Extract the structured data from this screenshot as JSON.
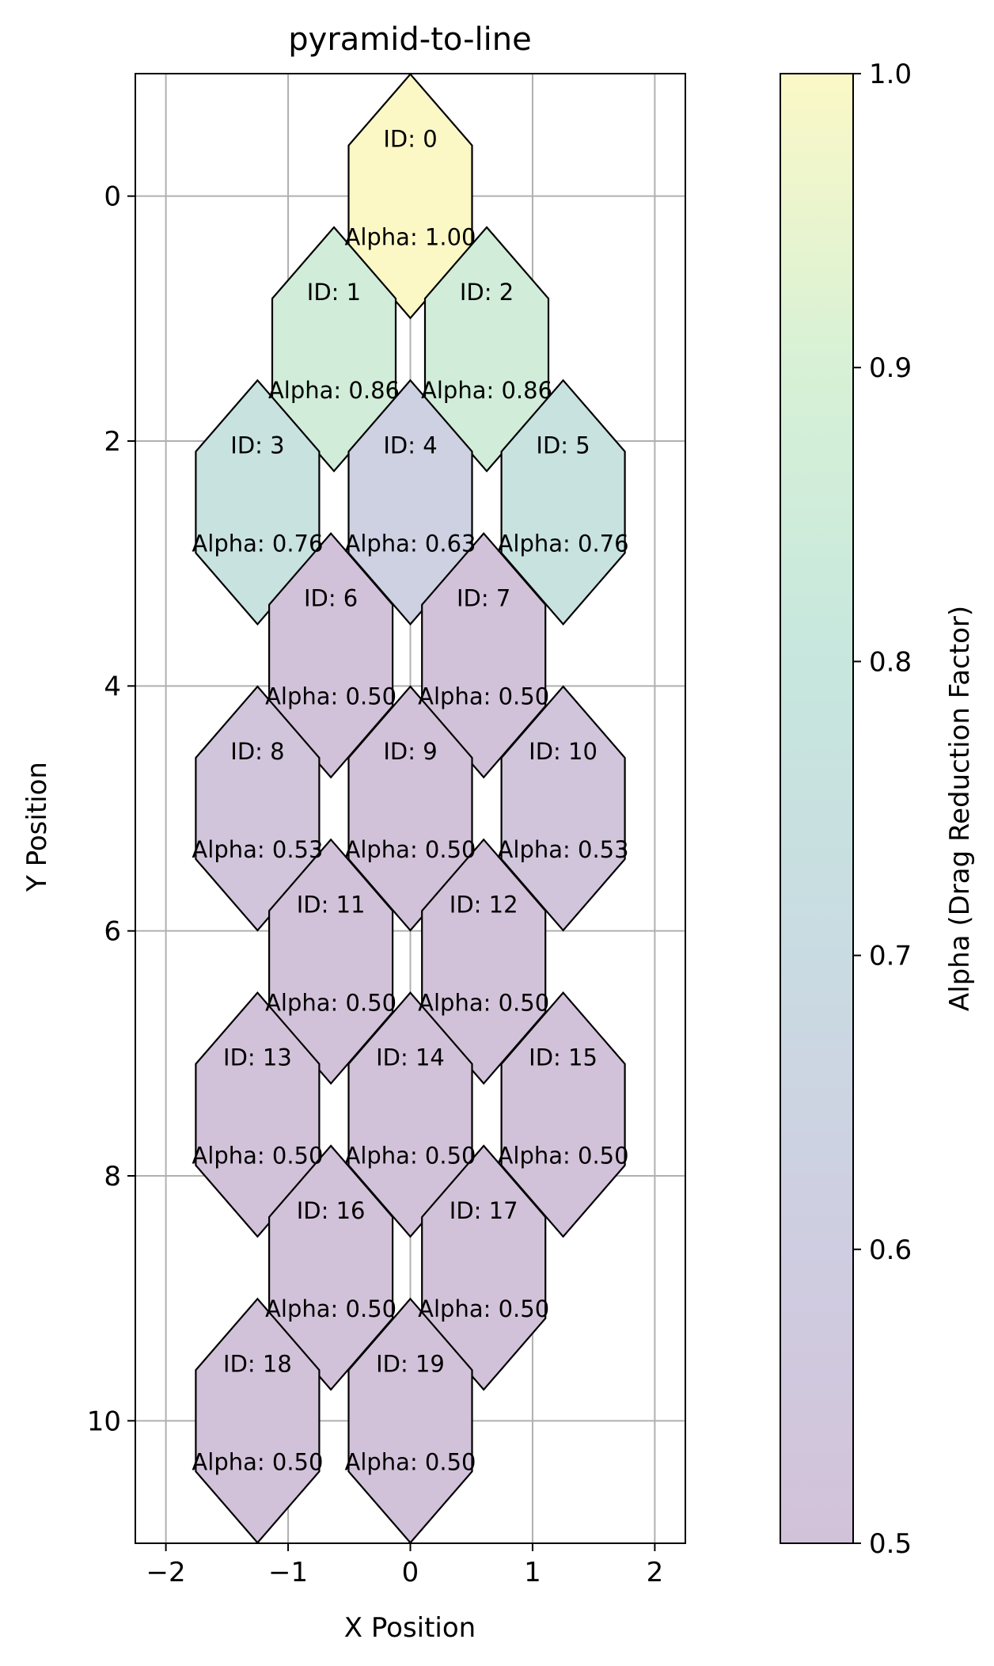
{
  "chart_data": {
    "type": "scatter",
    "title": "pyramid-to-line",
    "xlabel": "X Position",
    "ylabel": "Y Position",
    "xlim": [
      -2.25,
      2.25
    ],
    "ylim": [
      -1.0,
      11.0
    ],
    "y_inverted": true,
    "grid": true,
    "xticks": [
      -2,
      -1,
      0,
      1,
      2
    ],
    "xtick_labels": [
      "−2",
      "−1",
      "0",
      "1",
      "2"
    ],
    "yticks": [
      0,
      2,
      4,
      6,
      8,
      10
    ],
    "ytick_labels": [
      "0",
      "2",
      "4",
      "6",
      "8",
      "10"
    ],
    "colorbar": {
      "label": "Alpha (Drag Reduction Factor)",
      "range": [
        0.5,
        1.0
      ],
      "ticks": [
        0.5,
        0.6,
        0.7,
        0.8,
        0.9,
        1.0
      ],
      "tick_labels": [
        "0.5",
        "0.6",
        "0.7",
        "0.8",
        "0.9",
        "1.0"
      ],
      "colormap": "viridis",
      "alpha": 0.25
    },
    "points": [
      {
        "id": 0,
        "x": 0.0,
        "y": 0.0,
        "alpha": 1.0,
        "id_label": "ID: 0",
        "alpha_label": "Alpha: 1.00"
      },
      {
        "id": 1,
        "x": -0.625,
        "y": 1.25,
        "alpha": 0.86,
        "id_label": "ID: 1",
        "alpha_label": "Alpha: 0.86"
      },
      {
        "id": 2,
        "x": 0.625,
        "y": 1.25,
        "alpha": 0.86,
        "id_label": "ID: 2",
        "alpha_label": "Alpha: 0.86"
      },
      {
        "id": 3,
        "x": -1.25,
        "y": 2.5,
        "alpha": 0.76,
        "id_label": "ID: 3",
        "alpha_label": "Alpha: 0.76"
      },
      {
        "id": 4,
        "x": 0.0,
        "y": 2.5,
        "alpha": 0.63,
        "id_label": "ID: 4",
        "alpha_label": "Alpha: 0.63"
      },
      {
        "id": 5,
        "x": 1.25,
        "y": 2.5,
        "alpha": 0.76,
        "id_label": "ID: 5",
        "alpha_label": "Alpha: 0.76"
      },
      {
        "id": 6,
        "x": -0.65,
        "y": 3.75,
        "alpha": 0.5,
        "id_label": "ID: 6",
        "alpha_label": "Alpha: 0.50"
      },
      {
        "id": 7,
        "x": 0.6,
        "y": 3.75,
        "alpha": 0.5,
        "id_label": "ID: 7",
        "alpha_label": "Alpha: 0.50"
      },
      {
        "id": 8,
        "x": -1.25,
        "y": 5.0,
        "alpha": 0.53,
        "id_label": "ID: 8",
        "alpha_label": "Alpha: 0.53"
      },
      {
        "id": 9,
        "x": 0.0,
        "y": 5.0,
        "alpha": 0.5,
        "id_label": "ID: 9",
        "alpha_label": "Alpha: 0.50"
      },
      {
        "id": 10,
        "x": 1.25,
        "y": 5.0,
        "alpha": 0.53,
        "id_label": "ID: 10",
        "alpha_label": "Alpha: 0.53"
      },
      {
        "id": 11,
        "x": -0.65,
        "y": 6.25,
        "alpha": 0.5,
        "id_label": "ID: 11",
        "alpha_label": "Alpha: 0.50"
      },
      {
        "id": 12,
        "x": 0.6,
        "y": 6.25,
        "alpha": 0.5,
        "id_label": "ID: 12",
        "alpha_label": "Alpha: 0.50"
      },
      {
        "id": 13,
        "x": -1.25,
        "y": 7.5,
        "alpha": 0.5,
        "id_label": "ID: 13",
        "alpha_label": "Alpha: 0.50"
      },
      {
        "id": 14,
        "x": 0.0,
        "y": 7.5,
        "alpha": 0.5,
        "id_label": "ID: 14",
        "alpha_label": "Alpha: 0.50"
      },
      {
        "id": 15,
        "x": 1.25,
        "y": 7.5,
        "alpha": 0.5,
        "id_label": "ID: 15",
        "alpha_label": "Alpha: 0.50"
      },
      {
        "id": 16,
        "x": -0.65,
        "y": 8.75,
        "alpha": 0.5,
        "id_label": "ID: 16",
        "alpha_label": "Alpha: 0.50"
      },
      {
        "id": 17,
        "x": 0.6,
        "y": 8.75,
        "alpha": 0.5,
        "id_label": "ID: 17",
        "alpha_label": "Alpha: 0.50"
      },
      {
        "id": 18,
        "x": -1.25,
        "y": 10.0,
        "alpha": 0.5,
        "id_label": "ID: 18",
        "alpha_label": "Alpha: 0.50"
      },
      {
        "id": 19,
        "x": 0.0,
        "y": 10.0,
        "alpha": 0.5,
        "id_label": "ID: 19",
        "alpha_label": "Alpha: 0.50"
      }
    ]
  }
}
